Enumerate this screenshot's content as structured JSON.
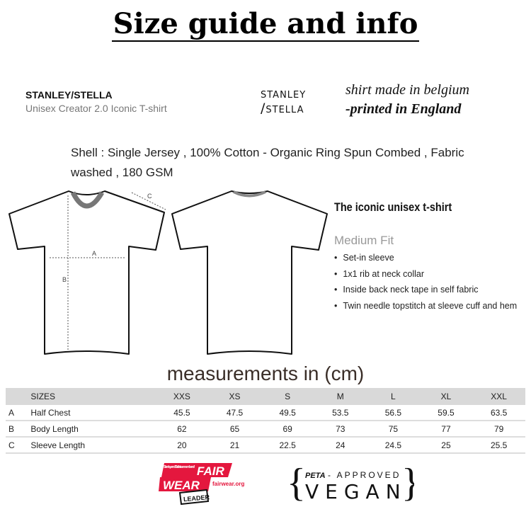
{
  "title": "Size guide and info",
  "brand": {
    "name": "STANLEY/STELLA",
    "model": "Unisex Creator 2.0 Iconic T-shirt",
    "logo_line1": "STANLEY",
    "logo_line2": "/STELLA"
  },
  "origin": {
    "made": "shirt made in belgium",
    "printed": "-printed in England"
  },
  "shell": "Shell : Single Jersey , 100% Cotton - Organic Ring Spun Combed , Fabric washed , 180 GSM",
  "diagram": {
    "label_a": "A",
    "label_b": "B",
    "label_c": "C"
  },
  "product": {
    "headline": "The iconic unisex t-shirt",
    "fit": "Medium Fit",
    "features": [
      "Set-in sleeve",
      "1x1 rib at neck collar",
      "Inside back neck tape in self fabric",
      "Twin needle topstitch at sleeve cuff and hem"
    ]
  },
  "measurements_title": "measurements in (cm)",
  "table": {
    "header": "SIZES",
    "sizes": [
      "XXS",
      "XS",
      "S",
      "M",
      "L",
      "XL",
      "XXL"
    ],
    "rows": [
      {
        "key": "A",
        "label": "Half Chest",
        "values": [
          "45.5",
          "47.5",
          "49.5",
          "53.5",
          "56.5",
          "59.5",
          "63.5"
        ]
      },
      {
        "key": "B",
        "label": "Body Length",
        "values": [
          "62",
          "65",
          "69",
          "73",
          "75",
          "77",
          "79"
        ]
      },
      {
        "key": "C",
        "label": "Sleeve Length",
        "values": [
          "20",
          "21",
          "22.5",
          "24",
          "24.5",
          "25",
          "25.5"
        ]
      }
    ]
  },
  "badges": {
    "fairwear": {
      "small": "Stanley and Stella is a member of",
      "fair": "FAIR",
      "wear": "WEAR",
      "url": "fairwear.org",
      "leader": "LEADER",
      "color": "#e4173e"
    },
    "vegan": {
      "peta": "PETA",
      "approved": "- APPROVED",
      "vegan": "VEGAN"
    }
  }
}
